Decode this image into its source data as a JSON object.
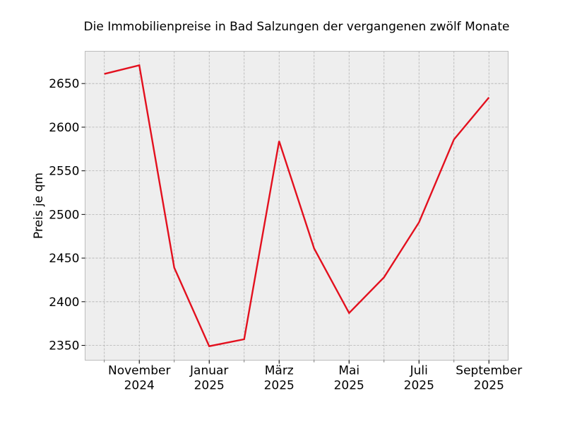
{
  "chart_data": {
    "type": "line",
    "title": "Die Immobilienpreise in Bad Salzungen der vergangenen zwölf Monate",
    "xlabel": "",
    "ylabel": "Preis je qm",
    "x": [
      "2024-10",
      "2024-11",
      "2024-12",
      "2025-01",
      "2025-02",
      "2025-03",
      "2025-04",
      "2025-05",
      "2025-06",
      "2025-07",
      "2025-08",
      "2025-09"
    ],
    "values": [
      2661,
      2671,
      2439,
      2349,
      2357,
      2584,
      2461,
      2387,
      2428,
      2491,
      2586,
      2634
    ],
    "ylim": [
      2333,
      2687
    ],
    "yticks": [
      2350,
      2400,
      2450,
      2500,
      2550,
      2600,
      2650
    ],
    "xtick_labels": [
      {
        "index": 1,
        "month": "November",
        "year": "2024"
      },
      {
        "index": 3,
        "month": "Januar",
        "year": "2025"
      },
      {
        "index": 5,
        "month": "März",
        "year": "2025"
      },
      {
        "index": 7,
        "month": "Mai",
        "year": "2025"
      },
      {
        "index": 9,
        "month": "Juli",
        "year": "2025"
      },
      {
        "index": 11,
        "month": "September",
        "year": "2025"
      }
    ],
    "grid": true,
    "line_color": "#e3101e",
    "background_color": "#eeeeee"
  }
}
